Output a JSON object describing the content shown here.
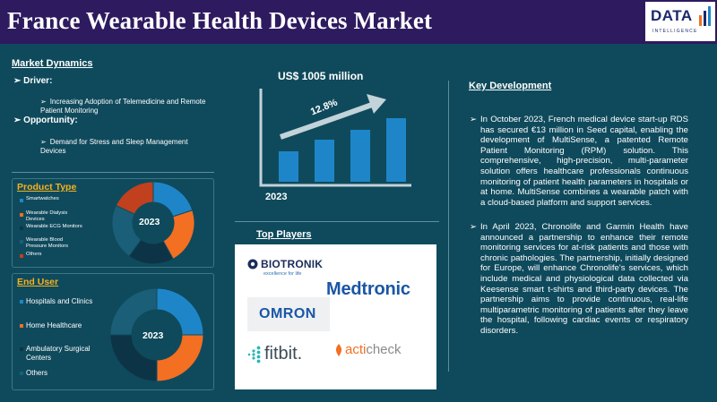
{
  "header": {
    "title": "France Wearable Health Devices Market",
    "logo_text": "DATA",
    "logo_sub": "INTELLIGENCE"
  },
  "market_dynamics": {
    "title": "Market Dynamics",
    "driver_label": "Driver:",
    "driver_text": "Increasing Adoption of Telemedicine and Remote Patient Monitoring",
    "opportunity_label": "Opportunity:",
    "opportunity_text": "Demand for Stress and Sleep Management Devices"
  },
  "growth": {
    "value_label": "US$ 1005 million",
    "cagr_label": "12.8%",
    "year_label": "2023"
  },
  "product_type": {
    "title": "Product Type",
    "year": "2023",
    "legend": [
      {
        "label": "Smartwatches",
        "color": "#1e86c8"
      },
      {
        "label": "Wearable Dialysis Devices",
        "color": "#f36f21"
      },
      {
        "label": "Wearable ECG Monitors",
        "color": "#0d3446"
      },
      {
        "label": "Wearable Blood Pressure Monitors",
        "color": "#1a5f77"
      },
      {
        "label": "Others",
        "color": "#c1401e"
      }
    ],
    "segments": [
      {
        "value": 0.2,
        "color": "#1e86c8"
      },
      {
        "value": 0.22,
        "color": "#f36f21"
      },
      {
        "value": 0.18,
        "color": "#0d3446"
      },
      {
        "value": 0.22,
        "color": "#1a5f77"
      },
      {
        "value": 0.18,
        "color": "#c1401e"
      }
    ]
  },
  "end_user": {
    "title": "End User",
    "year": "2023",
    "legend": [
      {
        "label": "Hospitals and Clinics",
        "color": "#1e86c8"
      },
      {
        "label": "Home Healthcare",
        "color": "#f36f21"
      },
      {
        "label": "Ambulatory Surgical Centers",
        "color": "#0d3446"
      },
      {
        "label": "Others",
        "color": "#1a5f77"
      }
    ],
    "segments": [
      {
        "value": 0.25,
        "color": "#1e86c8"
      },
      {
        "value": 0.25,
        "color": "#f36f21"
      },
      {
        "value": 0.25,
        "color": "#0d3446"
      },
      {
        "value": 0.25,
        "color": "#1a5f77"
      }
    ]
  },
  "top_players": {
    "title": "Top Players",
    "biotronik": "BIOTRONIK",
    "biotronik_sub": "excellence for life",
    "medtronic": "Medtronic",
    "omron": "OMRON",
    "fitbit": "fitbit.",
    "acticheck_a": "acti",
    "acticheck_b": "check"
  },
  "key_development": {
    "title": "Key Development",
    "para1": "In October 2023, French medical device start-up RDS has secured €13 million in Seed capital, enabling the development of MultiSense, a patented Remote Patient Monitoring (RPM) solution. This comprehensive, high-precision, multi-parameter solution offers healthcare professionals continuous monitoring of patient health parameters in hospitals or at home. MultiSense combines a wearable patch with a cloud-based platform and support services.",
    "para2": "In April 2023, Chronolife and Garmin Health have announced a partnership to enhance their remote monitoring services for at-risk patients and those with chronic pathologies. The partnership, initially designed for Europe, will enhance Chronolife's services, which include medical and physiological data collected via Keesense smart t-shirts and third-party devices. The partnership aims to provide continuous, real-life multiparametric monitoring of patients after they leave the hospital, following cardiac events or respiratory disorders."
  }
}
